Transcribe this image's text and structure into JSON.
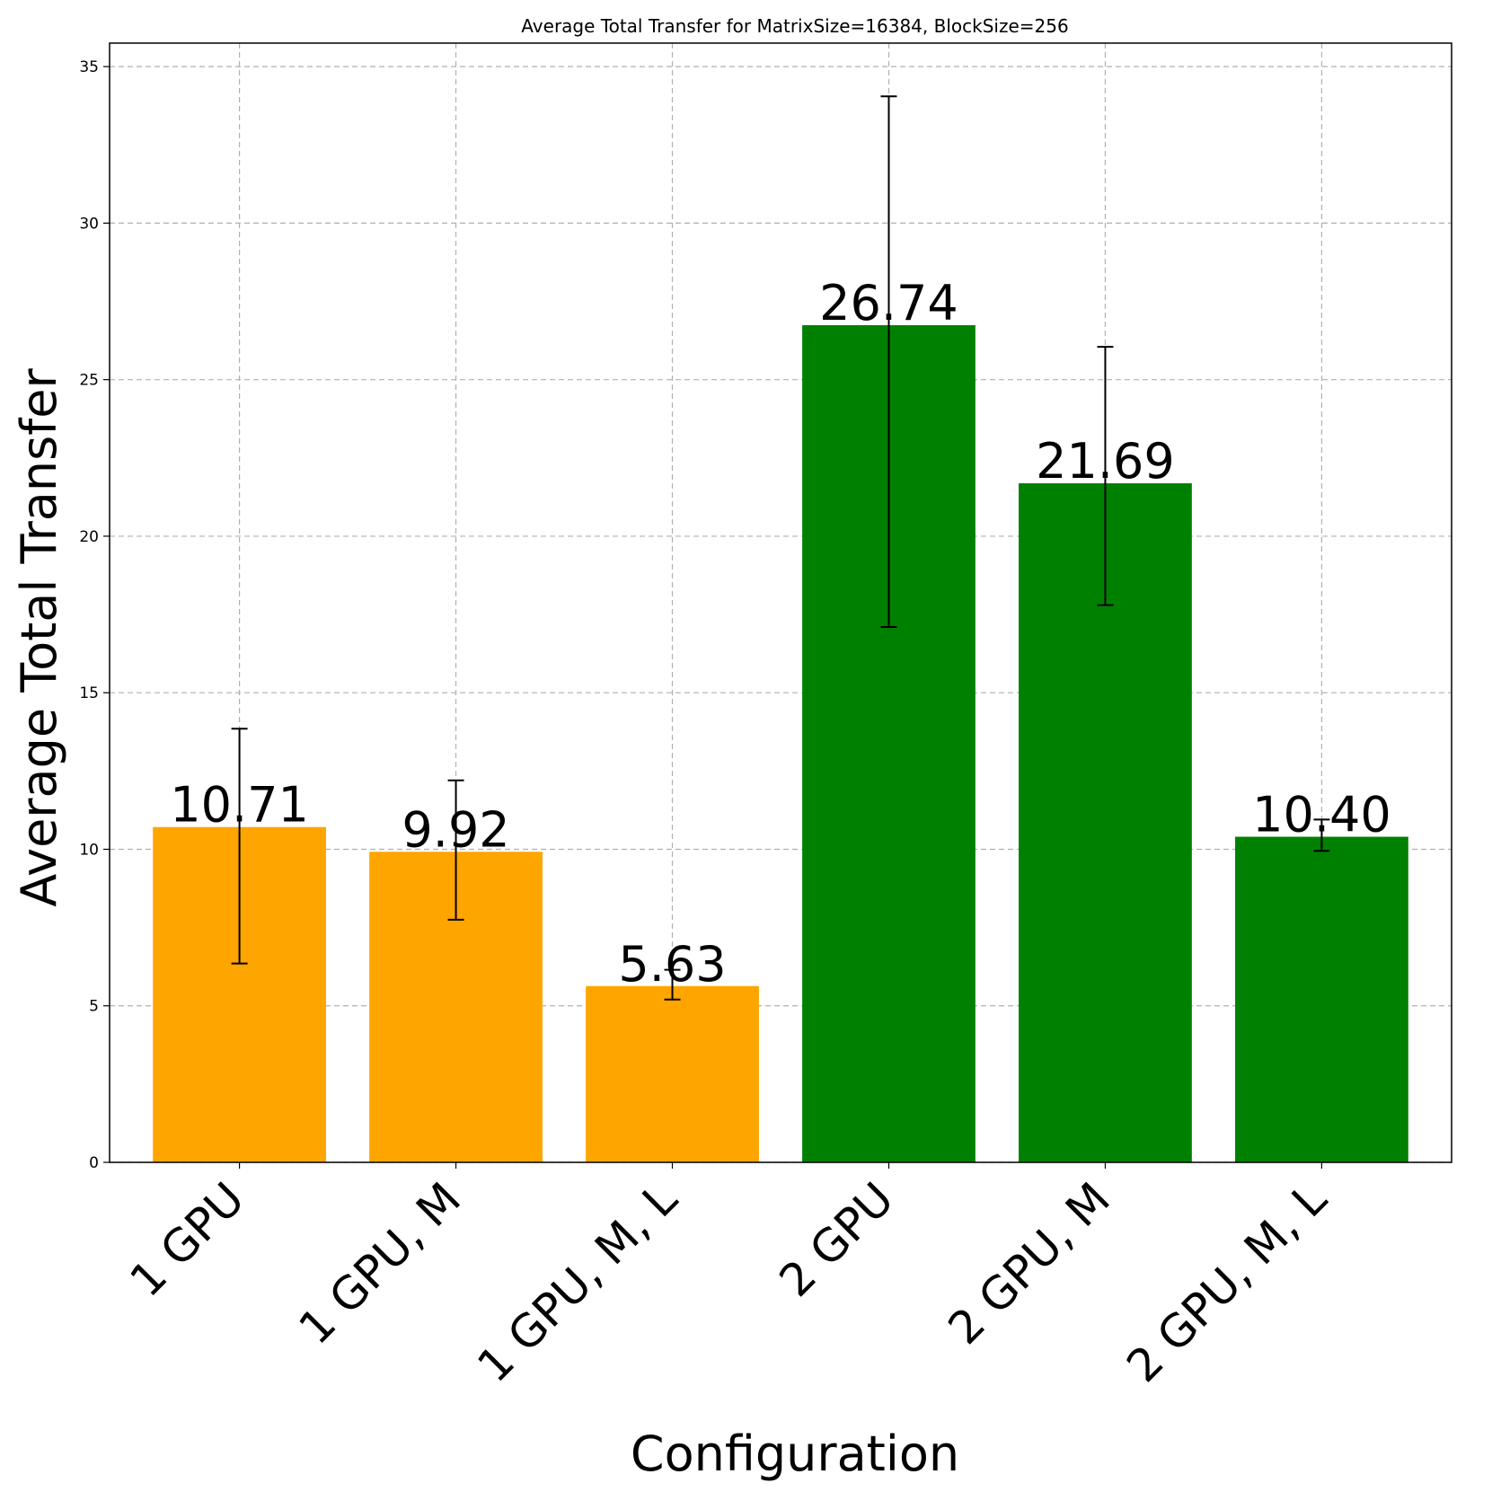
{
  "chart_data": {
    "type": "bar",
    "title": "Average Total Transfer for MatrixSize=16384, BlockSize=256",
    "xlabel": "Configuration",
    "ylabel": "Average Total Transfer",
    "categories": [
      "1 GPU",
      "1 GPU, M",
      "1 GPU, M, L",
      "2 GPU",
      "2 GPU, M",
      "2 GPU, M, L"
    ],
    "values": [
      10.71,
      9.92,
      5.63,
      26.74,
      21.69,
      10.4
    ],
    "value_labels": [
      "10.71",
      "9.92",
      "5.63",
      "26.74",
      "21.69",
      "10.40"
    ],
    "error_bars": [
      {
        "low": 6.35,
        "high": 13.85
      },
      {
        "low": 7.75,
        "high": 12.2
      },
      {
        "low": 5.2,
        "high": 6.15
      },
      {
        "low": 17.1,
        "high": 34.05
      },
      {
        "low": 17.8,
        "high": 26.05
      },
      {
        "low": 9.95,
        "high": 10.95
      }
    ],
    "bar_colors": [
      "#FFA500",
      "#FFA500",
      "#FFA500",
      "#008000",
      "#008000",
      "#008000"
    ],
    "ylim": [
      0,
      35.75
    ],
    "yticks": [
      0,
      5,
      10,
      15,
      20,
      25,
      30,
      35
    ],
    "ytick_labels": [
      "0",
      "5",
      "10",
      "15",
      "20",
      "25",
      "30",
      "35"
    ],
    "grid": true,
    "grid_style": "dashed",
    "grid_color": "#b0b0b0"
  }
}
